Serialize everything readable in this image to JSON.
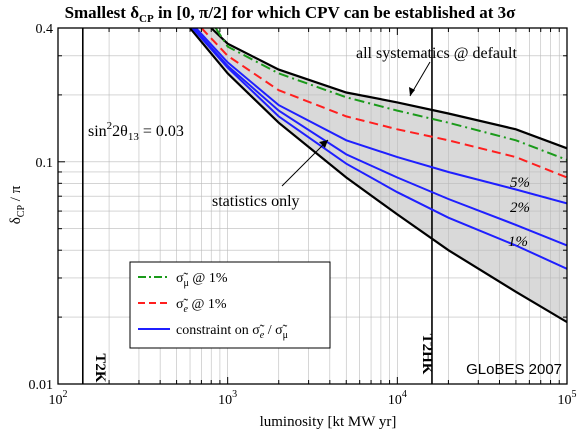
{
  "chart_data": {
    "type": "line",
    "title": "Smallest δCP in [0, π/2] for which CPV can be established at 3σ",
    "title_parts": {
      "pre": "Smallest δ",
      "sub": "CP",
      "post": " in [0, π/2] for which CPV can be established at 3σ"
    },
    "xlabel": "luminosity [kt MW yr]",
    "ylabel": "δCP / π",
    "ylabel_parts": {
      "main": "δ",
      "sub": "CP",
      "post": " / π"
    },
    "x_scale": "log",
    "y_scale": "log",
    "xlim": [
      100,
      100000
    ],
    "ylim": [
      0.01,
      0.4
    ],
    "grid": true,
    "x_ticks": [
      {
        "value": 100,
        "base": "10",
        "exp": "2"
      },
      {
        "value": 1000,
        "base": "10",
        "exp": "3"
      },
      {
        "value": 10000,
        "base": "10",
        "exp": "4"
      },
      {
        "value": 100000,
        "base": "10",
        "exp": "5"
      }
    ],
    "y_ticks": [
      {
        "value": 0.01,
        "label": "0.01"
      },
      {
        "value": 0.1,
        "label": "0.1"
      },
      {
        "value": 0.4,
        "label": "0.4"
      }
    ],
    "vertical_lines": [
      {
        "x": 140,
        "label": "T2K"
      },
      {
        "x": 16000,
        "label": "T2HK"
      }
    ],
    "annotations": {
      "theta": {
        "pre": "sin",
        "sup1": "2",
        "mid": "2θ",
        "sub": "13",
        "post": " = 0.03"
      },
      "systematics": "all systematics @ default",
      "statistics": "statistics only",
      "watermark": "GLoBES 2007"
    },
    "curve_labels": [
      "5%",
      "2%",
      "1%"
    ],
    "legend": {
      "placement": "bottom-left",
      "entries": [
        {
          "label": "σ̃μ @ 1%",
          "parts": {
            "sym": "σ̃",
            "sub": "μ",
            "post": " @ 1%"
          },
          "color": "#1a9a1a",
          "dash": "dash-dot"
        },
        {
          "label": "σ̃e @ 1%",
          "parts": {
            "sym": "σ̃",
            "sub": "e",
            "post": " @ 1%"
          },
          "color": "#ff1f1f",
          "dash": "dashed"
        },
        {
          "label": "constraint on σ̃e / σ̃μ",
          "parts": {
            "pre": "constraint on ",
            "sym": "σ̃",
            "sub": "e",
            "mid": " / ",
            "sym2": "σ̃",
            "sub2": "μ"
          },
          "color": "#1f1fff",
          "dash": "solid"
        }
      ]
    },
    "series": [
      {
        "id": "systematics",
        "color": "#000000",
        "style": "solid",
        "x": [
          800,
          1000,
          2000,
          5000,
          10000,
          20000,
          50000,
          100000
        ],
        "y": [
          0.4,
          0.34,
          0.26,
          0.205,
          0.185,
          0.165,
          0.14,
          0.115
        ]
      },
      {
        "id": "statistics",
        "color": "#000000",
        "style": "solid",
        "x": [
          600,
          1000,
          2000,
          5000,
          10000,
          20000,
          50000,
          100000
        ],
        "y": [
          0.4,
          0.25,
          0.15,
          0.085,
          0.058,
          0.04,
          0.026,
          0.019
        ]
      },
      {
        "id": "sigma-mu-1pct",
        "color": "#1a9a1a",
        "style": "dash-dot",
        "x": [
          850,
          1000,
          2000,
          5000,
          10000,
          20000,
          50000,
          100000
        ],
        "y": [
          0.4,
          0.33,
          0.25,
          0.195,
          0.17,
          0.15,
          0.125,
          0.102
        ]
      },
      {
        "id": "sigma-e-1pct",
        "color": "#ff1f1f",
        "style": "dashed",
        "x": [
          700,
          1000,
          2000,
          5000,
          10000,
          20000,
          50000,
          100000
        ],
        "y": [
          0.4,
          0.3,
          0.21,
          0.16,
          0.14,
          0.125,
          0.105,
          0.085
        ]
      },
      {
        "id": "constraint-5pct",
        "color": "#1f1fff",
        "style": "solid",
        "x": [
          650,
          1000,
          2000,
          5000,
          10000,
          20000,
          50000,
          100000
        ],
        "y": [
          0.4,
          0.28,
          0.18,
          0.125,
          0.105,
          0.09,
          0.075,
          0.065
        ]
      },
      {
        "id": "constraint-2pct",
        "color": "#1f1fff",
        "style": "solid",
        "x": [
          630,
          1000,
          2000,
          5000,
          10000,
          20000,
          50000,
          100000
        ],
        "y": [
          0.4,
          0.27,
          0.17,
          0.108,
          0.085,
          0.068,
          0.052,
          0.042
        ]
      },
      {
        "id": "constraint-1pct",
        "color": "#1f1fff",
        "style": "solid",
        "x": [
          620,
          1000,
          2000,
          5000,
          10000,
          20000,
          50000,
          100000
        ],
        "y": [
          0.4,
          0.265,
          0.16,
          0.098,
          0.073,
          0.056,
          0.042,
          0.033
        ]
      }
    ]
  }
}
